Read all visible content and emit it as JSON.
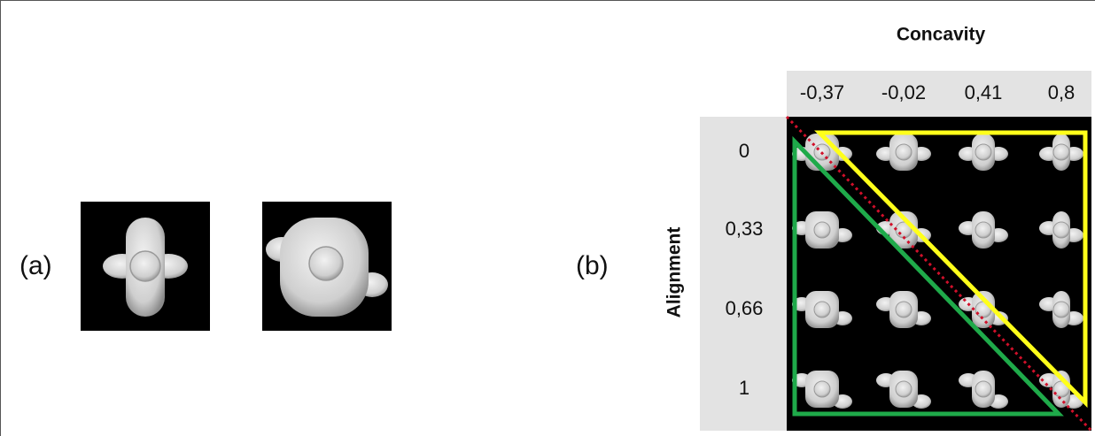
{
  "panel_a": {
    "label": "(a)"
  },
  "panel_b": {
    "label": "(b)",
    "column_title": "Concavity",
    "row_title": "Alignment",
    "columns": [
      "-0,37",
      "-0,02",
      "0,41",
      "0,8"
    ],
    "rows": [
      "0",
      "0,33",
      "0,66",
      "1"
    ]
  }
}
